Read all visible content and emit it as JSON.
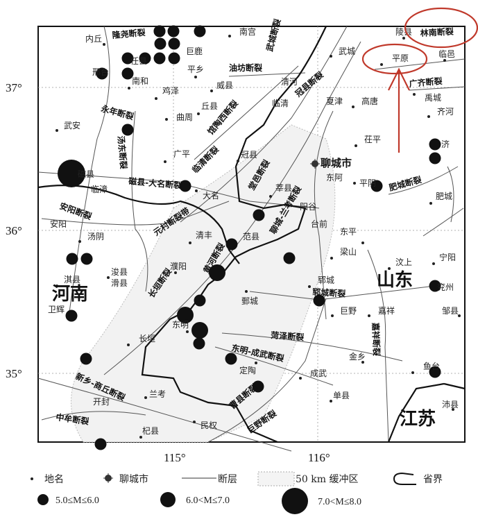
{
  "map": {
    "places": [
      "内丘",
      "南宫",
      "巨鹿",
      "任县",
      "邢台",
      "南和",
      "平乡",
      "鸡泽",
      "威县",
      "丘县",
      "曲周",
      "武安",
      "广平",
      "磁县",
      "临漳",
      "大名",
      "安阳",
      "汤阴",
      "清丰",
      "濮阳",
      "浚县",
      "滑县",
      "淇县",
      "卫辉",
      "长垣",
      "东明",
      "兰考",
      "开封",
      "杞县",
      "民权",
      "武城",
      "清河",
      "临清",
      "夏津",
      "高唐",
      "陵县",
      "平原",
      "临邑",
      "禹城",
      "齐河",
      "茌平",
      "济",
      "冠县",
      "东阿",
      "平阴",
      "肥城",
      "莘县",
      "阳谷",
      "台前",
      "范县",
      "东平",
      "梁山",
      "汶上",
      "宁阳",
      "兖州",
      "郓城",
      "鄄城",
      "巨野",
      "嘉祥",
      "邹县",
      "金乡",
      "鱼台",
      "定陶",
      "成武",
      "单县",
      "沛县"
    ],
    "city": "聊城市",
    "faults": [
      "隆尧断裂",
      "永年断裂",
      "磁县-大名断裂",
      "安阳断裂",
      "元村断裂带",
      "长垣断裂",
      "黄河断裂",
      "新乡-商丘断裂",
      "中牟断裂",
      "汤东断裂",
      "油坊断裂",
      "武城断裂",
      "馆陶西断裂",
      "临清断裂",
      "冠县断裂",
      "林南断裂",
      "广齐断裂",
      "肥城断裂",
      "堂邑断裂",
      "聊城-兰考断裂",
      "郓城断裂",
      "菏泽断裂",
      "东明-成武断裂",
      "曹县断裂",
      "巨野断裂",
      "嘉祥断裂"
    ],
    "provinces": [
      "河南",
      "山东",
      "江苏"
    ],
    "earthquakes": [
      "5-6",
      "5-6",
      "5-6",
      "5-6",
      "5-6",
      "5-6",
      "5-6",
      "5-6",
      "5-6",
      "5-6",
      "5-6",
      "5-6",
      "5-6",
      "7-8",
      "5-6",
      "5-6",
      "5-6",
      "5-6",
      "5-6",
      "5-6",
      "5-6",
      "5-6",
      "5-6",
      "6-7",
      "5-6",
      "6-7",
      "6-7",
      "5-6",
      "5-6",
      "5-6",
      "5-6",
      "5-6",
      "5-6",
      "5-6",
      "5-6",
      "5-6"
    ],
    "annotation_color": "#c0392b"
  },
  "axes": {
    "lat": [
      "37°",
      "36°",
      "35°"
    ],
    "lon": [
      "115°",
      "116°"
    ]
  },
  "legend": {
    "place": "地名",
    "city": "聊城市",
    "fault": "断层",
    "buffer": "50 km 缓冲区",
    "boundary": "省界",
    "m1": "5.0≤M≤6.0",
    "m2": "6.0<M≤7.0",
    "m3": "7.0<M≤8.0"
  }
}
